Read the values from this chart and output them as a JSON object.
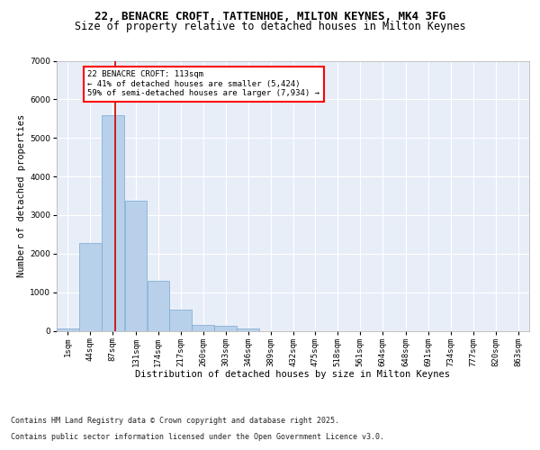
{
  "title_line1": "22, BENACRE CROFT, TATTENHOE, MILTON KEYNES, MK4 3FG",
  "title_line2": "Size of property relative to detached houses in Milton Keynes",
  "xlabel": "Distribution of detached houses by size in Milton Keynes",
  "ylabel": "Number of detached properties",
  "bin_labels": [
    "1sqm",
    "44sqm",
    "87sqm",
    "131sqm",
    "174sqm",
    "217sqm",
    "260sqm",
    "303sqm",
    "346sqm",
    "389sqm",
    "432sqm",
    "475sqm",
    "518sqm",
    "561sqm",
    "604sqm",
    "648sqm",
    "691sqm",
    "734sqm",
    "777sqm",
    "820sqm",
    "863sqm"
  ],
  "bin_edges": [
    1,
    44,
    87,
    131,
    174,
    217,
    260,
    303,
    346,
    389,
    432,
    475,
    518,
    561,
    604,
    648,
    691,
    734,
    777,
    820,
    863
  ],
  "bar_heights": [
    70,
    2280,
    5580,
    3380,
    1290,
    540,
    150,
    130,
    70,
    0,
    0,
    0,
    0,
    0,
    0,
    0,
    0,
    0,
    0,
    0,
    0
  ],
  "bar_color": "#b8d0ea",
  "bar_edge_color": "#7aaad0",
  "vline_x": 113,
  "vline_color": "#cc0000",
  "ylim": [
    0,
    7000
  ],
  "yticks": [
    0,
    1000,
    2000,
    3000,
    4000,
    5000,
    6000,
    7000
  ],
  "annotation_text": "22 BENACRE CROFT: 113sqm\n← 41% of detached houses are smaller (5,424)\n59% of semi-detached houses are larger (7,934) →",
  "footer_line1": "Contains HM Land Registry data © Crown copyright and database right 2025.",
  "footer_line2": "Contains public sector information licensed under the Open Government Licence v3.0.",
  "background_color": "#e8eef8",
  "grid_color": "#ffffff",
  "font_size_title1": 9,
  "font_size_title2": 8.5,
  "font_size_axis_label": 7.5,
  "font_size_ticks": 6.5,
  "font_size_annot": 6.5,
  "font_size_footer": 6
}
